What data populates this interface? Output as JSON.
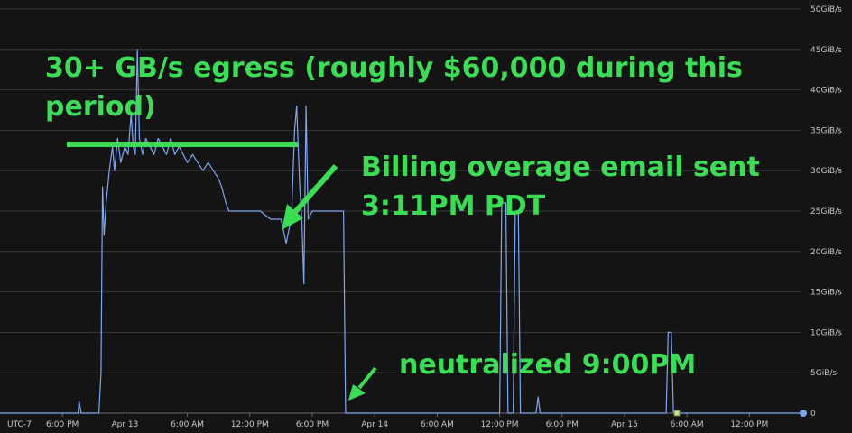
{
  "chart_data": {
    "type": "line",
    "timezone_label": "UTC-7",
    "y_unit": "GiB/s",
    "ylim": [
      0,
      50
    ],
    "y_ticks": [
      {
        "value": 0,
        "label": "0"
      },
      {
        "value": 5,
        "label": "5GiB/s"
      },
      {
        "value": 10,
        "label": "10GiB/s"
      },
      {
        "value": 15,
        "label": "15GiB/s"
      },
      {
        "value": 20,
        "label": "20GiB/s"
      },
      {
        "value": 25,
        "label": "25GiB/s"
      },
      {
        "value": 30,
        "label": "30GiB/s"
      },
      {
        "value": 35,
        "label": "35GiB/s"
      },
      {
        "value": 40,
        "label": "40GiB/s"
      },
      {
        "value": 45,
        "label": "45GiB/s"
      },
      {
        "value": 50,
        "label": "50GiB/s"
      }
    ],
    "x_ticks": [
      {
        "hour": 18,
        "label": "6:00 PM"
      },
      {
        "hour": 24,
        "label": "Apr 13"
      },
      {
        "hour": 30,
        "label": "6:00 AM"
      },
      {
        "hour": 36,
        "label": "12:00 PM"
      },
      {
        "hour": 42,
        "label": "6:00 PM"
      },
      {
        "hour": 48,
        "label": "Apr 14"
      },
      {
        "hour": 54,
        "label": "6:00 AM"
      },
      {
        "hour": 60,
        "label": "12:00 PM"
      },
      {
        "hour": 66,
        "label": "6:00 PM"
      },
      {
        "hour": 72,
        "label": "Apr 15"
      },
      {
        "hour": 78,
        "label": "6:00 AM"
      },
      {
        "hour": 84,
        "label": "12:00 PM"
      }
    ],
    "xlim_hours": [
      12,
      89
    ],
    "x_note": "hour values are hours after Apr 12 12:00 AM",
    "series": [
      {
        "color": "#7fa6f0",
        "points": [
          [
            12,
            0
          ],
          [
            19.5,
            0
          ],
          [
            19.6,
            1.5
          ],
          [
            19.8,
            0
          ],
          [
            21.5,
            0
          ],
          [
            21.7,
            5
          ],
          [
            21.85,
            28
          ],
          [
            22.0,
            22
          ],
          [
            22.2,
            26
          ],
          [
            22.5,
            30
          ],
          [
            22.8,
            33
          ],
          [
            23.0,
            30
          ],
          [
            23.3,
            34
          ],
          [
            23.6,
            31
          ],
          [
            24.0,
            33
          ],
          [
            24.3,
            32
          ],
          [
            24.6,
            37
          ],
          [
            24.8,
            33
          ],
          [
            25.0,
            32
          ],
          [
            25.2,
            45
          ],
          [
            25.4,
            34
          ],
          [
            25.7,
            32
          ],
          [
            26.0,
            34
          ],
          [
            26.4,
            33
          ],
          [
            26.8,
            32
          ],
          [
            27.2,
            34
          ],
          [
            27.6,
            33
          ],
          [
            28.0,
            32
          ],
          [
            28.4,
            34
          ],
          [
            28.8,
            32
          ],
          [
            29.2,
            33
          ],
          [
            29.6,
            32
          ],
          [
            30.0,
            31
          ],
          [
            30.5,
            32
          ],
          [
            31.0,
            31
          ],
          [
            31.5,
            30
          ],
          [
            32.0,
            31
          ],
          [
            32.5,
            30
          ],
          [
            33.0,
            29
          ],
          [
            33.3,
            28
          ],
          [
            33.7,
            26
          ],
          [
            34.0,
            25
          ],
          [
            35.0,
            25
          ],
          [
            36.0,
            25
          ],
          [
            37.0,
            25
          ],
          [
            38.0,
            24
          ],
          [
            39.0,
            24
          ],
          [
            39.5,
            21
          ],
          [
            39.8,
            23
          ],
          [
            40.0,
            24
          ],
          [
            40.3,
            35
          ],
          [
            40.5,
            38
          ],
          [
            40.8,
            28
          ],
          [
            41.0,
            24
          ],
          [
            41.2,
            16
          ],
          [
            41.4,
            38
          ],
          [
            41.6,
            24
          ],
          [
            42.0,
            25
          ],
          [
            43.0,
            25
          ],
          [
            44.0,
            25
          ],
          [
            45.0,
            25
          ],
          [
            45.2,
            0
          ],
          [
            60,
            0
          ],
          [
            60.2,
            26
          ],
          [
            60.6,
            26
          ],
          [
            60.8,
            0
          ],
          [
            61.3,
            0
          ],
          [
            61.5,
            25
          ],
          [
            61.8,
            25
          ],
          [
            62.0,
            0
          ],
          [
            63.5,
            0
          ],
          [
            63.7,
            2
          ],
          [
            63.9,
            0
          ],
          [
            76,
            0
          ],
          [
            76.2,
            10
          ],
          [
            76.5,
            10
          ],
          [
            76.7,
            0
          ],
          [
            89,
            0
          ]
        ]
      }
    ],
    "annotations": [
      {
        "id": "egress",
        "lines": [
          "30+ GB/s egress (roughly $60,000 during this",
          "period)"
        ]
      },
      {
        "id": "billing",
        "lines": [
          "Billing overage email sent",
          "3:11PM PDT"
        ]
      },
      {
        "id": "neutralized",
        "lines": [
          "neutralized 9:00PM"
        ]
      }
    ],
    "colors": {
      "background": "#141414",
      "grid": "#3a3a3a",
      "line": "#7fa6f0",
      "annotation": "#3ddc57",
      "tick_text": "#c8c8c8"
    }
  }
}
